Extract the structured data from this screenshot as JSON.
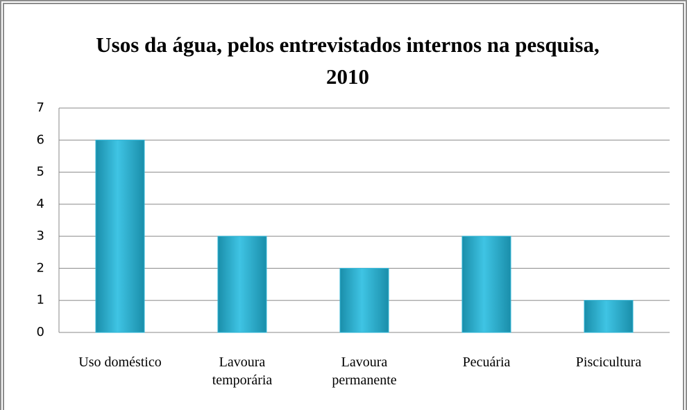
{
  "chart_data": {
    "type": "bar",
    "title": "Usos da água, pelos entrevistados internos na pesquisa, 2010",
    "categories": [
      "Uso doméstico",
      "Lavoura temporária",
      "Lavoura permanente",
      "Pecuária",
      "Piscicultura"
    ],
    "values": [
      6,
      3,
      2,
      3,
      1
    ],
    "color": "#2fb5d6",
    "ylim": [
      0,
      7
    ],
    "yticks": [
      0,
      1,
      2,
      3,
      4,
      5,
      6,
      7
    ],
    "grid": true
  }
}
